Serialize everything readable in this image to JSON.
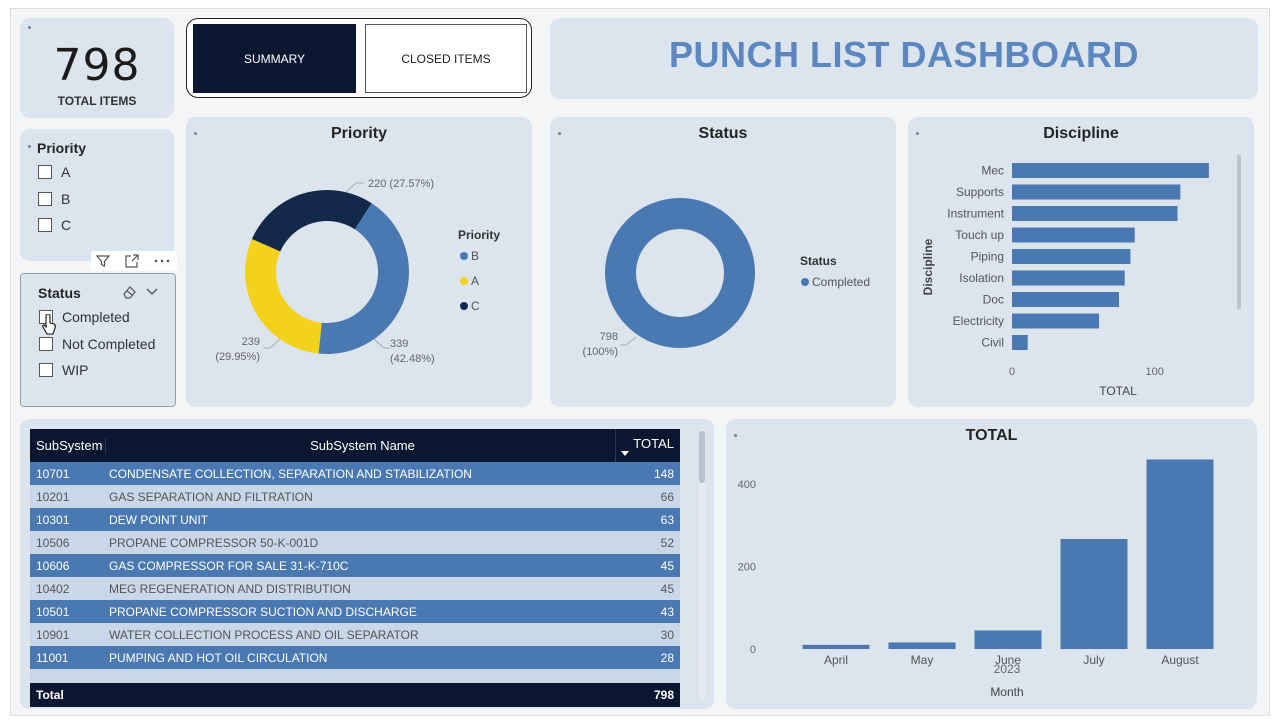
{
  "kpi": {
    "value": "798",
    "label": "TOTAL ITEMS"
  },
  "nav": {
    "summary": "SUMMARY",
    "closed": "CLOSED ITEMS"
  },
  "page_title": "PUNCH LIST DASHBOARD",
  "priority_slicer": {
    "title": "Priority",
    "options": [
      "A",
      "B",
      "C"
    ]
  },
  "status_slicer": {
    "title": "Status",
    "options": [
      "Completed",
      "Not Completed",
      "WIP"
    ]
  },
  "priority_chart": {
    "title": "Priority",
    "legend_title": "Priority",
    "legend": [
      {
        "name": "B",
        "color": "#4a78b0"
      },
      {
        "name": "A",
        "color": "#f2d21b"
      },
      {
        "name": "C",
        "color": "#13294a"
      }
    ],
    "labels": {
      "c": "220 (27.57%)",
      "a_value": "239",
      "a_pct": "(29.95%)",
      "b_value": "339",
      "b_pct": "(42.48%)"
    }
  },
  "status_chart": {
    "title": "Status",
    "legend_title": "Status",
    "legend": [
      {
        "name": "Completed",
        "color": "#4a78b0"
      }
    ],
    "label_value": "798",
    "label_pct": "(100%)"
  },
  "discipline_chart": {
    "title": "Discipline",
    "ylabel": "Discipline",
    "xlabel": "TOTAL",
    "ticks": [
      "0",
      "100"
    ]
  },
  "table": {
    "headers": [
      "SubSystem",
      "SubSystem Name",
      "TOTAL"
    ],
    "rows": [
      {
        "id": "10701",
        "name": "CONDENSATE COLLECTION, SEPARATION AND STABILIZATION",
        "total": "148"
      },
      {
        "id": "10201",
        "name": "GAS SEPARATION AND FILTRATION",
        "total": "66"
      },
      {
        "id": "10301",
        "name": "DEW POINT UNIT",
        "total": "63"
      },
      {
        "id": "10506",
        "name": "PROPANE COMPRESSOR 50-K-001D",
        "total": "52"
      },
      {
        "id": "10606",
        "name": "GAS COMPRESSOR FOR SALE 31-K-710C",
        "total": "45"
      },
      {
        "id": "10402",
        "name": "MEG REGENERATION AND DISTRIBUTION",
        "total": "45"
      },
      {
        "id": "10501",
        "name": "PROPANE COMPRESSOR SUCTION AND DISCHARGE",
        "total": "43"
      },
      {
        "id": "10901",
        "name": "WATER COLLECTION PROCESS AND OIL SEPARATOR",
        "total": "30"
      },
      {
        "id": "11001",
        "name": "PUMPING AND HOT OIL CIRCULATION",
        "total": "28"
      }
    ],
    "total_label": "Total",
    "total_value": "798"
  },
  "month_chart": {
    "title": "TOTAL",
    "xlabel": "Month",
    "year_label": "2023",
    "y_ticks": [
      "0",
      "200",
      "400"
    ]
  },
  "chart_data": [
    {
      "type": "pie",
      "title": "Priority",
      "categories": [
        "B",
        "A",
        "C"
      ],
      "values": [
        339,
        239,
        220
      ],
      "colors": [
        "#4a78b0",
        "#f2d21b",
        "#13294a"
      ]
    },
    {
      "type": "pie",
      "title": "Status",
      "categories": [
        "Completed"
      ],
      "values": [
        798
      ],
      "colors": [
        "#4a78b0"
      ]
    },
    {
      "type": "bar",
      "orientation": "horizontal",
      "title": "Discipline",
      "ylabel": "Discipline",
      "xlabel": "TOTAL",
      "categories": [
        "Mec",
        "Supports",
        "Instrument",
        "Touch up",
        "Piping",
        "Isolation",
        "Doc",
        "Electricity",
        "Civil"
      ],
      "values": [
        138,
        118,
        116,
        86,
        83,
        79,
        75,
        61,
        11
      ],
      "xlim": [
        0,
        150
      ],
      "color": "#4a78b0"
    },
    {
      "type": "bar",
      "title": "TOTAL",
      "xlabel": "Month",
      "categories": [
        "April",
        "May",
        "June",
        "July",
        "August"
      ],
      "values": [
        10,
        16,
        45,
        267,
        460
      ],
      "ylim": [
        0,
        500
      ],
      "color": "#4a78b0"
    }
  ]
}
